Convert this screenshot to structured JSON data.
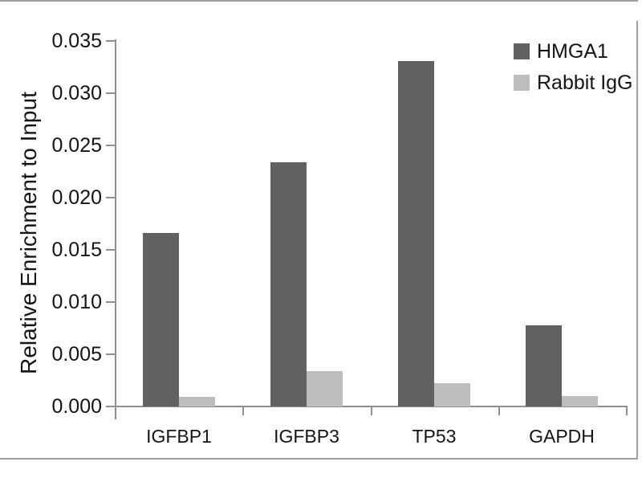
{
  "chart_data": {
    "type": "bar",
    "title": "",
    "xlabel": "",
    "ylabel": "Relative Enrichment to Input",
    "categories": [
      "IGFBP1",
      "IGFBP3",
      "TP53",
      "GAPDH"
    ],
    "series": [
      {
        "name": "HMGA1",
        "color": "#616161",
        "values": [
          0.0166,
          0.0234,
          0.0331,
          0.0078
        ]
      },
      {
        "name": "Rabbit IgG",
        "color": "#bdbdbd",
        "values": [
          0.0009,
          0.0034,
          0.0022,
          0.001
        ]
      }
    ],
    "ylim": [
      0,
      0.035
    ],
    "ytick_step": 0.005,
    "ytick_labels": [
      "0.000",
      "0.005",
      "0.010",
      "0.015",
      "0.020",
      "0.025",
      "0.030",
      "0.035"
    ],
    "legend_position": "top-right",
    "grid": false
  },
  "colors": {
    "axis": "#8f8f8f",
    "frame": "#9e9e9e",
    "text": "#141414",
    "background": "#ffffff"
  }
}
